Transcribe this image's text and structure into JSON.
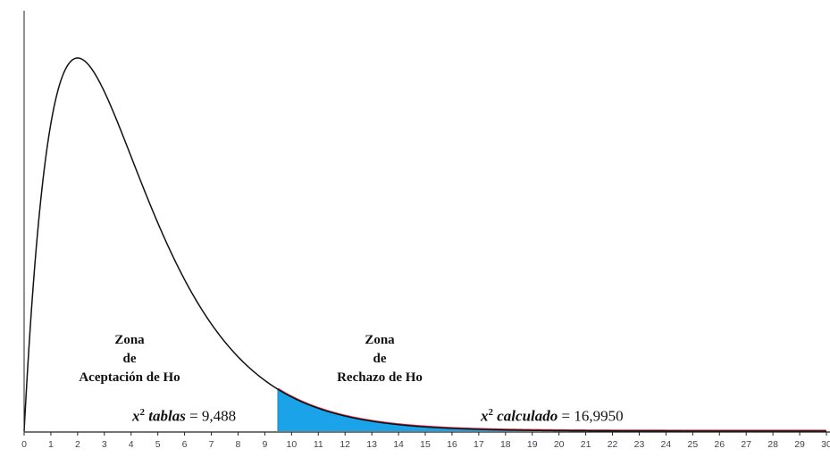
{
  "chart_data": {
    "type": "area",
    "title": "",
    "xlabel": "",
    "ylabel": "",
    "xlim": [
      0,
      30
    ],
    "x_ticks": [
      0,
      1,
      2,
      3,
      4,
      5,
      6,
      7,
      8,
      9,
      10,
      11,
      12,
      13,
      14,
      15,
      16,
      17,
      18,
      19,
      20,
      21,
      22,
      23,
      24,
      25,
      26,
      27,
      28,
      29,
      30
    ],
    "distribution": "chi-square",
    "degrees_of_freedom": 4,
    "curve_peak_x": 2,
    "critical_value": 9.488,
    "calculated_value": 16.995,
    "grid": false,
    "legend": "none",
    "colors": {
      "curve": "#111111",
      "rejection_fill": "#1aa3e8",
      "rejection_outline": "#e0304a",
      "axis": "#222222"
    }
  },
  "labels": {
    "accept_zone": [
      "Zona",
      "de",
      "Aceptación de Ho"
    ],
    "reject_zone": [
      "Zona",
      "de",
      "Rechazo de Ho"
    ],
    "tablas": {
      "symbol": "x",
      "power": "2",
      "name": "tablas",
      "value": " = 9,488"
    },
    "calculado": {
      "symbol": "x",
      "power": "2",
      "name": "calculado",
      "value": " = 16,9950"
    }
  }
}
